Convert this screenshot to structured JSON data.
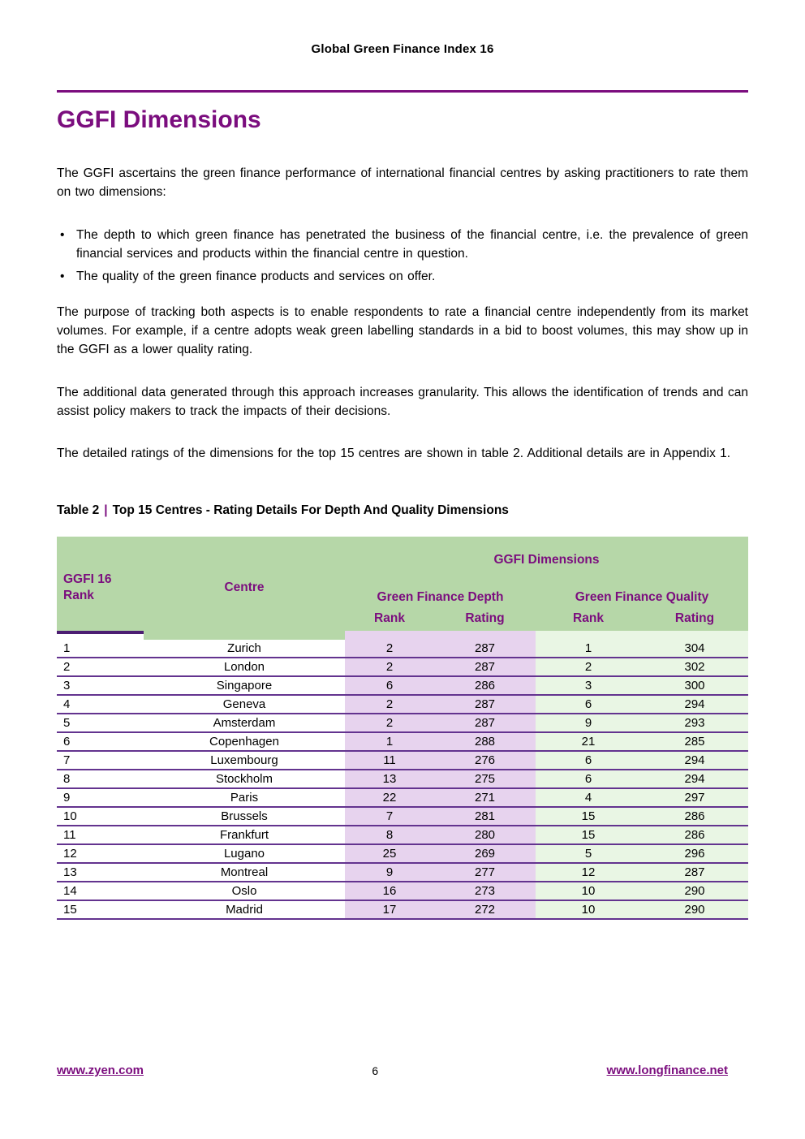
{
  "colors": {
    "brand_purple": "#7b0d7e",
    "table_border_purple": "#63338f",
    "table_header_green": "#b6d7a8",
    "depth_column_bg": "#e7d3ee",
    "quality_column_bg": "#e9f6e4"
  },
  "running_head": "Global Green Finance Index 16",
  "section_title": "GGFI Dimensions",
  "content": {
    "intro": "The GGFI ascertains the green finance performance of international financial centres by asking practitioners to rate them on two dimensions:",
    "bullet_marker": "•",
    "bullets": [
      "The depth to which green finance has penetrated the business of the financial centre, i.e. the prevalence of green financial services and products within the financial centre in question.",
      "The quality of the green finance products and services on offer."
    ],
    "purpose": "The purpose of tracking both aspects is to enable respondents to rate a financial centre independently from its market volumes. For example, if a centre adopts weak green labelling standards in a bid to boost volumes, this may show up in the GGFI as a lower quality rating.",
    "additional": "The additional data generated through this approach increases granularity. This allows the identification of trends and can assist policy makers to track the impacts of their decisions.",
    "detailed": "The detailed ratings of the dimensions for the top 15 centres are shown in table 2. Additional details are in Appendix 1."
  },
  "caption": {
    "prefix": "Table 2",
    "separator": "|",
    "title": "Top 15 Centres - Rating Details For Depth And Quality Dimensions"
  },
  "table": {
    "group_header": "GGFI Dimensions",
    "col1_header_line1": "GGFI 16",
    "col1_header_line2": "Rank",
    "centre_header": "Centre",
    "depth_header": "Green Finance Depth",
    "quality_header": "Green Finance Quality",
    "sub_headers": [
      "Rank",
      "Rating",
      "Rank",
      "Rating"
    ],
    "rows": [
      {
        "rank": "1",
        "centre": "Zurich",
        "d_rank": "2",
        "d_rating": "287",
        "q_rank": "1",
        "q_rating": "304"
      },
      {
        "rank": "2",
        "centre": "London",
        "d_rank": "2",
        "d_rating": "287",
        "q_rank": "2",
        "q_rating": "302"
      },
      {
        "rank": "3",
        "centre": "Singapore",
        "d_rank": "6",
        "d_rating": "286",
        "q_rank": "3",
        "q_rating": "300"
      },
      {
        "rank": "4",
        "centre": "Geneva",
        "d_rank": "2",
        "d_rating": "287",
        "q_rank": "6",
        "q_rating": "294"
      },
      {
        "rank": "5",
        "centre": "Amsterdam",
        "d_rank": "2",
        "d_rating": "287",
        "q_rank": "9",
        "q_rating": "293"
      },
      {
        "rank": "6",
        "centre": "Copenhagen",
        "d_rank": "1",
        "d_rating": "288",
        "q_rank": "21",
        "q_rating": "285"
      },
      {
        "rank": "7",
        "centre": "Luxembourg",
        "d_rank": "11",
        "d_rating": "276",
        "q_rank": "6",
        "q_rating": "294"
      },
      {
        "rank": "8",
        "centre": "Stockholm",
        "d_rank": "13",
        "d_rating": "275",
        "q_rank": "6",
        "q_rating": "294"
      },
      {
        "rank": "9",
        "centre": "Paris",
        "d_rank": "22",
        "d_rating": "271",
        "q_rank": "4",
        "q_rating": "297"
      },
      {
        "rank": "10",
        "centre": "Brussels",
        "d_rank": "7",
        "d_rating": "281",
        "q_rank": "15",
        "q_rating": "286"
      },
      {
        "rank": "11",
        "centre": "Frankfurt",
        "d_rank": "8",
        "d_rating": "280",
        "q_rank": "15",
        "q_rating": "286"
      },
      {
        "rank": "12",
        "centre": "Lugano",
        "d_rank": "25",
        "d_rating": "269",
        "q_rank": "5",
        "q_rating": "296"
      },
      {
        "rank": "13",
        "centre": "Montreal",
        "d_rank": "9",
        "d_rating": "277",
        "q_rank": "12",
        "q_rating": "287"
      },
      {
        "rank": "14",
        "centre": "Oslo",
        "d_rank": "16",
        "d_rating": "273",
        "q_rank": "10",
        "q_rating": "290"
      },
      {
        "rank": "15",
        "centre": "Madrid",
        "d_rank": "17",
        "d_rating": "272",
        "q_rank": "10",
        "q_rating": "290"
      }
    ]
  },
  "footer": {
    "left_link": "www.zyen.com",
    "page_number": "6",
    "right_link": "www.longfinance.net"
  }
}
